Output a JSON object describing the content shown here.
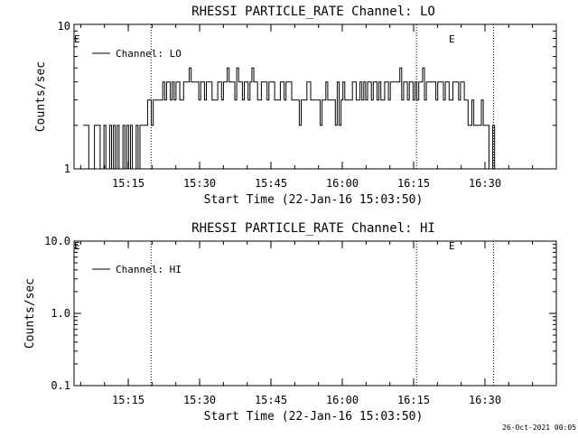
{
  "timestamp": "26-Oct-2021 00:05",
  "chart_data": [
    {
      "type": "line",
      "title": "RHESSI PARTICLE_RATE Channel: LO",
      "xlabel": "Start Time (22-Jan-16 15:03:50)",
      "ylabel": "Counts/sec",
      "yscale": "log",
      "ylim": [
        1,
        10
      ],
      "yticks": [
        "1",
        "10"
      ],
      "xlim_minutes": [
        15.06,
        16.75
      ],
      "xticks": [
        "15:15",
        "15:30",
        "15:45",
        "16:00",
        "16:15",
        "16:30"
      ],
      "xtick_hours": [
        15.25,
        15.5,
        15.75,
        16.0,
        16.25,
        16.5
      ],
      "legend_entries": [
        "Channel: LO"
      ],
      "legend_position": "top-left",
      "event_lines_hours": [
        15.33,
        16.26,
        16.53
      ],
      "event_labels": [
        "E",
        "E"
      ],
      "event_label_hours": [
        15.06,
        16.26
      ],
      "series": [
        {
          "values": [
            2,
            2,
            2,
            1,
            1,
            1,
            2,
            2,
            2,
            1,
            1,
            2,
            1,
            1,
            2,
            1,
            2,
            1,
            2,
            1,
            1,
            2,
            1,
            2,
            1,
            2,
            1,
            1,
            2,
            1,
            2,
            2,
            2,
            2,
            3,
            3,
            2,
            3,
            3,
            3,
            3,
            3,
            4,
            3,
            4,
            4,
            3,
            4,
            3,
            4,
            4,
            3,
            3,
            4,
            4,
            4,
            5,
            4,
            4,
            4,
            4,
            3,
            4,
            4,
            3,
            4,
            4,
            4,
            3,
            3,
            3,
            4,
            4,
            3,
            4,
            4,
            5,
            4,
            4,
            4,
            3,
            5,
            4,
            4,
            3,
            4,
            4,
            3,
            4,
            5,
            4,
            4,
            3,
            3,
            4,
            4,
            4,
            3,
            4,
            4,
            4,
            3,
            3,
            3,
            4,
            4,
            3,
            4,
            4,
            4,
            3,
            3,
            3,
            3,
            2,
            3,
            3,
            3,
            4,
            4,
            3,
            3,
            3,
            3,
            3,
            2,
            3,
            3,
            4,
            3,
            3,
            3,
            3,
            2,
            4,
            2,
            3,
            4,
            3,
            3,
            3,
            3,
            4,
            4,
            3,
            3,
            4,
            3,
            4,
            3,
            4,
            4,
            3,
            4,
            4,
            3,
            4,
            3,
            3,
            4,
            4,
            3,
            4,
            4,
            4,
            4,
            4,
            5,
            3,
            4,
            4,
            3,
            4,
            4,
            3,
            4,
            3,
            4,
            4,
            5,
            3,
            4,
            4,
            4,
            4,
            4,
            3,
            4,
            4,
            4,
            3,
            4,
            4,
            3,
            3,
            4,
            4,
            4,
            3,
            4,
            4,
            3,
            3,
            2,
            2,
            3,
            2,
            2,
            2,
            2,
            3,
            2,
            2,
            2,
            1,
            1,
            2,
            1,
            1,
            1
          ]
        }
      ]
    },
    {
      "type": "line",
      "title": "RHESSI PARTICLE_RATE Channel: HI",
      "xlabel": "Start Time (22-Jan-16 15:03:50)",
      "ylabel": "Counts/sec",
      "yscale": "log",
      "ylim": [
        0.1,
        10
      ],
      "yticks": [
        "0.1",
        "1.0",
        "10.0"
      ],
      "xticks": [
        "15:15",
        "15:30",
        "15:45",
        "16:00",
        "16:15",
        "16:30"
      ],
      "xtick_hours": [
        15.25,
        15.5,
        15.75,
        16.0,
        16.25,
        16.5
      ],
      "legend_entries": [
        "Channel: HI"
      ],
      "legend_position": "top-left",
      "event_lines_hours": [
        15.33,
        16.26,
        16.53
      ],
      "event_labels": [
        "E",
        "E"
      ],
      "event_label_hours": [
        15.06,
        16.26
      ],
      "series": [
        {
          "values": []
        }
      ]
    }
  ]
}
